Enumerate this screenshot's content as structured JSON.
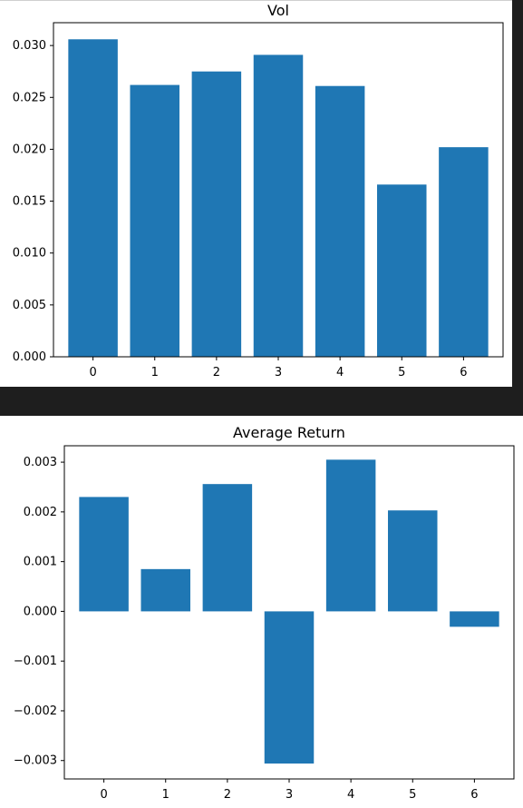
{
  "chart_data": [
    {
      "type": "bar",
      "title": "Vol",
      "xlabel": "",
      "ylabel": "",
      "categories": [
        "0",
        "1",
        "2",
        "3",
        "4",
        "5",
        "6"
      ],
      "values": [
        0.0306,
        0.0262,
        0.0275,
        0.0291,
        0.0261,
        0.0166,
        0.0202
      ],
      "ylim": [
        0,
        0.0322
      ],
      "yticks": [
        0.0,
        0.005,
        0.01,
        0.015,
        0.02,
        0.025,
        0.03
      ],
      "ytick_labels": [
        "0.000",
        "0.005",
        "0.010",
        "0.015",
        "0.020",
        "0.025",
        "0.030"
      ],
      "bar_color": "#1f77b4",
      "grid": false
    },
    {
      "type": "bar",
      "title": "Average Return",
      "xlabel": "",
      "ylabel": "",
      "categories": [
        "0",
        "1",
        "2",
        "3",
        "4",
        "5",
        "6"
      ],
      "values": [
        0.0023,
        0.00085,
        0.00256,
        -0.00306,
        0.00305,
        0.00203,
        -0.00031
      ],
      "ylim": [
        -0.00337,
        0.00333
      ],
      "yticks": [
        -0.003,
        -0.002,
        -0.001,
        0.0,
        0.001,
        0.002,
        0.003
      ],
      "ytick_labels": [
        "−0.003",
        "−0.002",
        "−0.001",
        "0.000",
        "0.001",
        "0.002",
        "0.003"
      ],
      "bar_color": "#1f77b4",
      "grid": false
    }
  ]
}
